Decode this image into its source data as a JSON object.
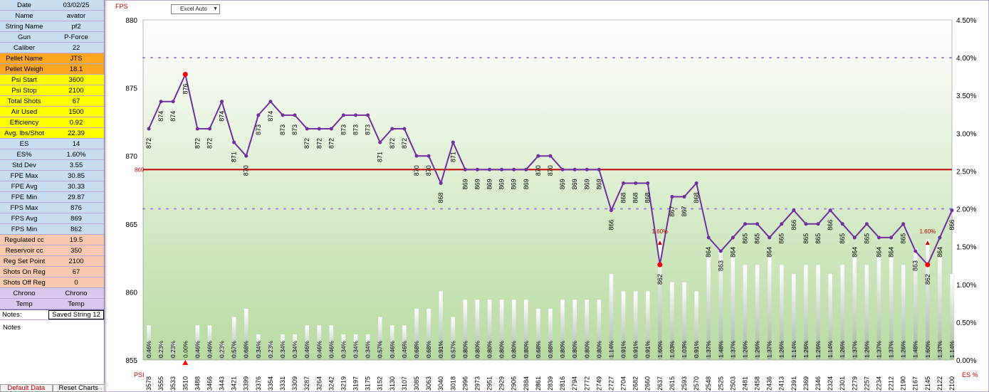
{
  "sidebar": {
    "groups": [
      {
        "color": "lightblue",
        "rows": [
          {
            "label": "Date",
            "value": "03/02/25"
          },
          {
            "label": "Name",
            "value": "avator"
          },
          {
            "label": "String Name",
            "value": "pf2"
          }
        ]
      },
      {
        "color": "lightblue",
        "rows": [
          {
            "label": "Gun",
            "value": "P-Force"
          },
          {
            "label": "Caliber",
            "value": "22"
          }
        ]
      },
      {
        "color": "orange",
        "rows": [
          {
            "label": "Pellet Name",
            "value": "JTS"
          },
          {
            "label": "Pellet Weigh",
            "value": "18.1"
          }
        ]
      },
      {
        "color": "yellow",
        "rows": [
          {
            "label": "Psi Start",
            "value": "3600"
          },
          {
            "label": "Psi Stop",
            "value": "2100"
          },
          {
            "label": "Total Shots",
            "value": "67"
          },
          {
            "label": "Air Used",
            "value": "1500"
          },
          {
            "label": "Efficiency",
            "value": "0.92"
          },
          {
            "label": "Avg. lbs/Shot",
            "value": "22.39"
          }
        ]
      },
      {
        "color": "lightblue",
        "rows": [
          {
            "label": "ES",
            "value": "14"
          },
          {
            "label": "ES%",
            "value": "1.60%"
          },
          {
            "label": "Std Dev",
            "value": "3.55"
          }
        ]
      },
      {
        "color": "lightblue",
        "rows": [
          {
            "label": "FPE Max",
            "value": "30.85"
          },
          {
            "label": "FPE Avg",
            "value": "30.33"
          },
          {
            "label": "FPE Min",
            "value": "29.87"
          }
        ]
      },
      {
        "color": "lightblue",
        "rows": [
          {
            "label": "FPS Max",
            "value": "876"
          },
          {
            "label": "FPS Avg",
            "value": "869"
          },
          {
            "label": "FPS Min",
            "value": "862"
          }
        ]
      },
      {
        "color": "peach",
        "rows": [
          {
            "label": "Regulated cc",
            "value": "19.5"
          },
          {
            "label": "Reservoir cc",
            "value": "350"
          },
          {
            "label": "Reg Set Point",
            "value": "2100"
          },
          {
            "label": "Shots On Reg",
            "value": "67"
          },
          {
            "label": "Shots Off Reg",
            "value": "0"
          }
        ]
      },
      {
        "color": "lavender",
        "rows": [
          {
            "label": "Chrono",
            "value": "Chrono"
          },
          {
            "label": "Temp",
            "value": "Temp"
          }
        ]
      }
    ],
    "notes_row": {
      "label": "Notes:",
      "value": "Saved String 12"
    },
    "notes_label": "Notes",
    "buttons": {
      "default_data": "Default Data",
      "reset_charts": "Reset Charts"
    }
  },
  "toolbar": {
    "dropdown_value": "Excel Auto"
  },
  "colors": {
    "line": "#7030a0",
    "avg_line": "#c00000",
    "extreme_marker": "#ff0000",
    "dotted_lines": "#9b7fd0",
    "plot_bg_top": "#ffffff",
    "plot_bg_bottom": "#b8dba0"
  },
  "chart_data": {
    "type": "line",
    "left_axis_title": "FPS",
    "right_axis_title": "ES %",
    "bottom_axis_title": "PSI",
    "ylim": [
      855,
      880
    ],
    "yticks": [
      855,
      860,
      865,
      870,
      875,
      880
    ],
    "y2lim": [
      0,
      4.5
    ],
    "y2ticks": [
      "0.00%",
      "0.50%",
      "1.00%",
      "1.50%",
      "2.00%",
      "2.50%",
      "3.00%",
      "3.50%",
      "4.00%",
      "4.50%"
    ],
    "avg_line": {
      "value": 869,
      "label": "869"
    },
    "dotted_levels_pct": [
      4.0,
      2.0
    ],
    "es_annotation": "1.60%",
    "fps": [
      872,
      874,
      874,
      876,
      872,
      872,
      874,
      871,
      870,
      873,
      874,
      873,
      873,
      872,
      872,
      872,
      873,
      873,
      873,
      871,
      872,
      872,
      870,
      870,
      868,
      871,
      869,
      869,
      869,
      869,
      869,
      869,
      870,
      870,
      869,
      869,
      869,
      869,
      866,
      868,
      868,
      868,
      862,
      867,
      867,
      868,
      864,
      863,
      864,
      865,
      865,
      864,
      865,
      866,
      865,
      865,
      866,
      865,
      864,
      865,
      864,
      864,
      865,
      863,
      862,
      864,
      866
    ],
    "psi": [
      "3578",
      "3555",
      "3533",
      "3510",
      "3488",
      "3466",
      "3443",
      "3421",
      "3399",
      "3376",
      "3354",
      "3331",
      "3309",
      "3287",
      "3264",
      "3242",
      "3219",
      "3197",
      "3175",
      "3152",
      "3130",
      "3107",
      "3085",
      "3063",
      "3040",
      "3018",
      "2996",
      "2973",
      "2951",
      "2929",
      "2906",
      "2884",
      "2861",
      "2839",
      "2816",
      "2794",
      "2772",
      "2749",
      "2727",
      "2704",
      "2682",
      "2660",
      "2637",
      "2615",
      "2593",
      "2570",
      "2548",
      "2525",
      "2503",
      "2481",
      "2458",
      "2436",
      "2413",
      "2391",
      "2369",
      "2346",
      "2324",
      "2301",
      "2279",
      "2257",
      "2234",
      "2212",
      "2190",
      "2167",
      "2145",
      "2122",
      "2100"
    ],
    "es_pct": [
      "0.46%",
      "0.23%",
      "0.23%",
      "0.00%",
      "0.46%",
      "0.46%",
      "0.23%",
      "0.57%",
      "0.68%",
      "0.34%",
      "0.23%",
      "0.34%",
      "0.34%",
      "0.46%",
      "0.46%",
      "0.46%",
      "0.34%",
      "0.34%",
      "0.34%",
      "0.57%",
      "0.46%",
      "0.46%",
      "0.68%",
      "0.68%",
      "0.91%",
      "0.57%",
      "0.80%",
      "0.80%",
      "0.80%",
      "0.80%",
      "0.80%",
      "0.80%",
      "0.68%",
      "0.68%",
      "0.80%",
      "0.80%",
      "0.80%",
      "0.80%",
      "1.14%",
      "0.91%",
      "0.91%",
      "0.91%",
      "1.60%",
      "1.03%",
      "1.03%",
      "0.91%",
      "1.37%",
      "1.48%",
      "1.37%",
      "1.26%",
      "1.26%",
      "1.37%",
      "1.26%",
      "1.14%",
      "1.26%",
      "1.26%",
      "1.14%",
      "1.26%",
      "1.37%",
      "1.26%",
      "1.37%",
      "1.37%",
      "1.26%",
      "1.48%",
      "1.60%",
      "1.37%",
      "1.14%"
    ]
  }
}
